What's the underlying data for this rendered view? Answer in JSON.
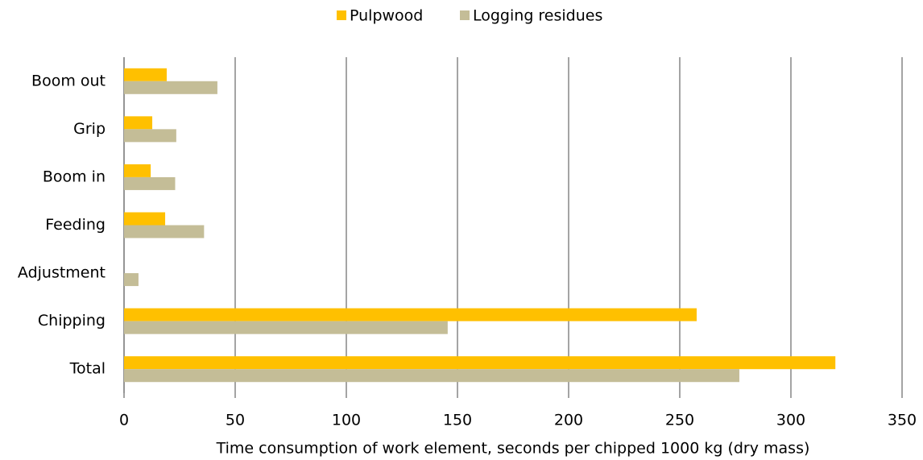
{
  "chart_data": {
    "type": "bar",
    "orientation": "horizontal",
    "categories": [
      "Boom out",
      "Grip",
      "Boom in",
      "Feeding",
      "Adjustment",
      "Chipping",
      "Total"
    ],
    "series": [
      {
        "name": "Pulpwood",
        "color": "#ffc000",
        "values": [
          19.2,
          12.7,
          12,
          18.5,
          0,
          257.6,
          320
        ]
      },
      {
        "name": "Logging residues",
        "color": "#c4bd97",
        "values": [
          42,
          23.5,
          23,
          36,
          6.5,
          145.6,
          276.8
        ]
      }
    ],
    "x_label": "Time consumption of work element, seconds per chipped 1000 kg (dry mass)",
    "xlim": [
      0,
      350
    ],
    "xticks": [
      0,
      50,
      100,
      150,
      200,
      250,
      300,
      350
    ],
    "grid": true,
    "legend": "top"
  }
}
